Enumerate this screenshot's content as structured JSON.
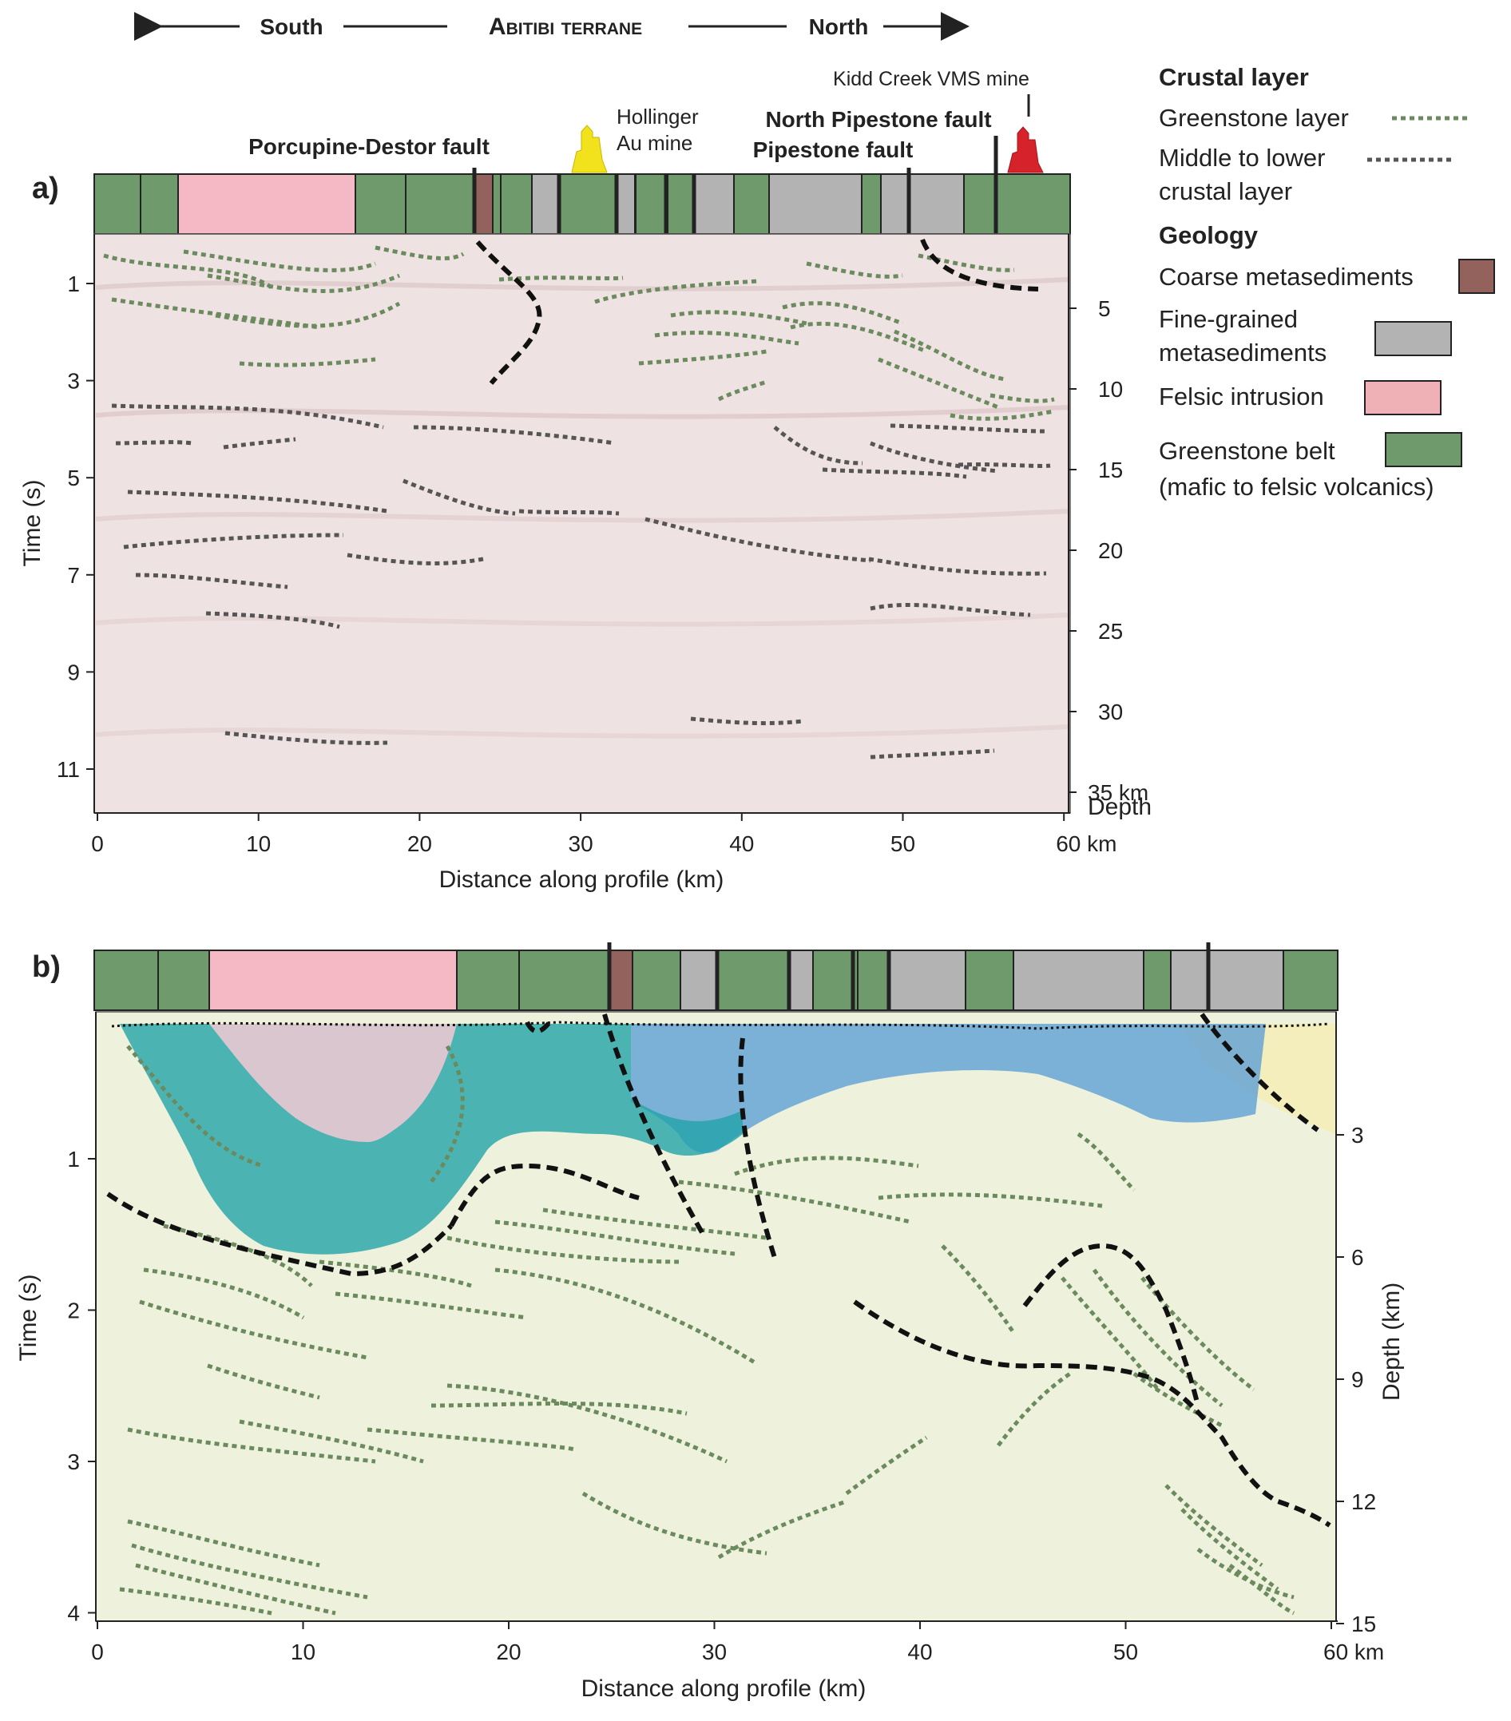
{
  "header": {
    "left": "South",
    "center": "Abitibi terrane",
    "right": "North"
  },
  "panel_a": {
    "label": "a)",
    "annotations": {
      "porcupine": "Porcupine-Destor fault",
      "hollinger_line1": "Hollinger",
      "hollinger_line2": "Au mine",
      "north_pipestone": "North Pipestone fault",
      "pipestone": "Pipestone fault",
      "kidd": "Kidd Creek VMS mine"
    },
    "y_label": "Time (s)",
    "y_ticks": [
      "1",
      "3",
      "5",
      "7",
      "9",
      "11"
    ],
    "depth_ticks": [
      "5",
      "10",
      "15",
      "20",
      "25",
      "30",
      "35 km"
    ],
    "depth_label": "Depth",
    "x_ticks": [
      "0",
      "10",
      "20",
      "30",
      "40",
      "50",
      "60 km"
    ],
    "x_label": "Distance along profile (km)"
  },
  "panel_b": {
    "label": "b)",
    "y_label": "Time (s)",
    "y_ticks": [
      "1",
      "2",
      "3",
      "4"
    ],
    "depth_ticks": [
      "3",
      "6",
      "9",
      "12",
      "15"
    ],
    "depth_label": "Depth (km)",
    "x_ticks": [
      "0",
      "10",
      "20",
      "30",
      "40",
      "50",
      "60 km"
    ],
    "x_label": "Distance along profile (km)"
  },
  "legend": {
    "crustal_title": "Crustal layer",
    "greenstone_layer": "Greenstone layer",
    "middle_lower_1": "Middle to lower",
    "middle_lower_2": "crustal layer",
    "geology_title": "Geology",
    "coarse": "Coarse metasediments",
    "fine_1": "Fine-grained",
    "fine_2": "metasediments",
    "felsic": "Felsic intrusion",
    "greenstone_belt_1": "Greenstone belt",
    "greenstone_belt_2": "(mafic to felsic volcanics)"
  },
  "colors": {
    "greenstone": "#6e9a6c",
    "fine_metased": "#b3b3b3",
    "coarse_metased": "#93625c",
    "felsic": "#f4b9c4",
    "green_dot": "#6b8a5e",
    "dark_dot": "#555555",
    "seis_a": "#efe2e2",
    "seis_b": "#eef2dc",
    "teal": "#23a3a9",
    "blue": "#5b9fd6",
    "gold_mine": "#f2e21c",
    "red_mine": "#d6222a"
  }
}
